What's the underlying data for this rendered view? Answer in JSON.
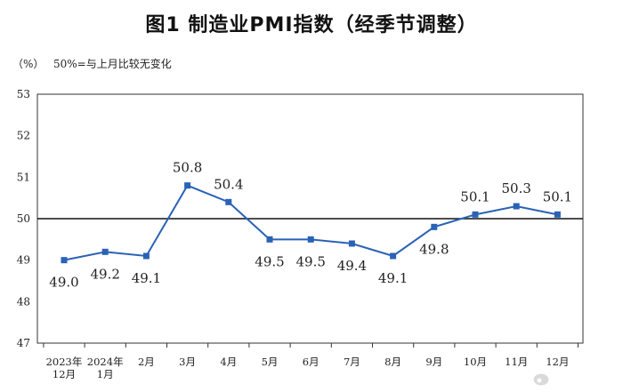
{
  "chart_data": {
    "type": "line",
    "title": "图1  制造业PMI指数（经季节调整）",
    "ylabel": "（%）",
    "note": "50%=与上月比较无变化",
    "ylim": [
      47,
      53
    ],
    "yticks": [
      47,
      48,
      49,
      50,
      51,
      52,
      53
    ],
    "reference_line": 50,
    "grid": false,
    "categories": [
      [
        "2023年",
        "12月"
      ],
      [
        "2024年",
        "1月"
      ],
      [
        "2月"
      ],
      [
        "3月"
      ],
      [
        "4月"
      ],
      [
        "5月"
      ],
      [
        "6月"
      ],
      [
        "7月"
      ],
      [
        "8月"
      ],
      [
        "9月"
      ],
      [
        "10月"
      ],
      [
        "11月"
      ],
      [
        "12月"
      ]
    ],
    "series": [
      {
        "values": [
          49.0,
          49.2,
          49.1,
          50.8,
          50.4,
          49.5,
          49.5,
          49.4,
          49.1,
          49.8,
          50.1,
          50.3,
          50.1
        ],
        "labels": [
          "49.0",
          "49.2",
          "49.1",
          "50.8",
          "50.4",
          "49.5",
          "49.5",
          "49.4",
          "49.1",
          "49.8",
          "50.1",
          "50.3",
          "50.1"
        ],
        "label_position": [
          "below",
          "below",
          "below",
          "above",
          "above",
          "below",
          "below",
          "below",
          "below",
          "below",
          "above",
          "above",
          "above"
        ],
        "color": "#2a62b6"
      }
    ]
  },
  "watermark": {
    "icon": "weibo-icon",
    "text": "浩海投研"
  }
}
